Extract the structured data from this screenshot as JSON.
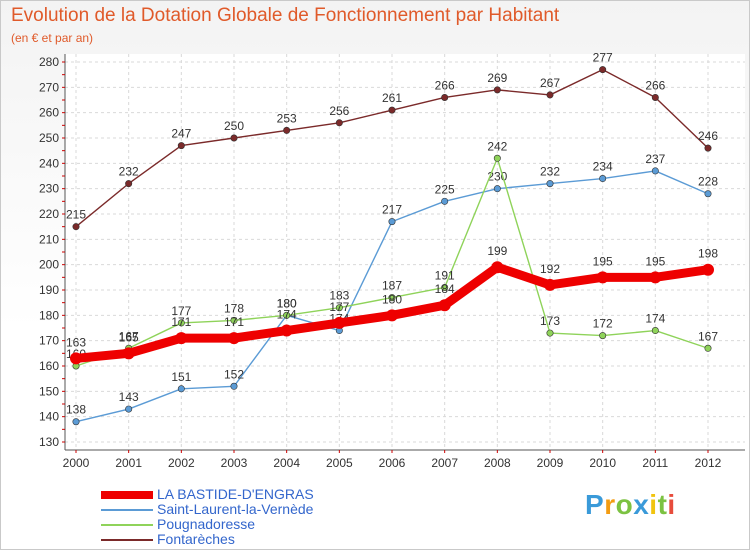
{
  "chart_data": {
    "type": "line",
    "title": "Evolution de la Dotation Globale de Fonctionnement par Habitant",
    "subtitle": "(en € et par an)",
    "xlabel": "",
    "ylabel": "",
    "x": [
      "2000",
      "2001",
      "2002",
      "2003",
      "2004",
      "2005",
      "2006",
      "2007",
      "2008",
      "2009",
      "2010",
      "2011",
      "2012"
    ],
    "ylim": [
      130,
      280
    ],
    "yticks": [
      130,
      140,
      150,
      160,
      170,
      180,
      190,
      200,
      210,
      220,
      230,
      240,
      250,
      260,
      270,
      280
    ],
    "grid": true,
    "legend_position": "bottom-left",
    "series": [
      {
        "name": "Fontarèches",
        "color": "#7b2a2a",
        "values": [
          215,
          232,
          247,
          250,
          253,
          256,
          261,
          266,
          269,
          267,
          277,
          266,
          246
        ]
      },
      {
        "name": "Saint-Laurent-la-Vernède",
        "color": "#5b9bd5",
        "values": [
          138,
          143,
          151,
          152,
          180,
          174,
          217,
          225,
          230,
          232,
          234,
          237,
          228
        ]
      },
      {
        "name": "Pougnadoresse",
        "color": "#8fd35a",
        "values": [
          160,
          167,
          177,
          178,
          180,
          183,
          187,
          191,
          242,
          173,
          172,
          174,
          167
        ]
      },
      {
        "name": "LA BASTIDE-D'ENGRAS",
        "color": "#ee0000",
        "values": [
          163,
          165,
          171,
          171,
          174,
          177,
          180,
          184,
          199,
          192,
          195,
          195,
          198
        ]
      }
    ]
  },
  "legend": [
    {
      "name": "LA BASTIDE-D'ENGRAS",
      "color": "#ee0000",
      "text_color": "#3366cc"
    },
    {
      "name": "Saint-Laurent-la-Vernède",
      "color": "#5b9bd5",
      "text_color": "#3366cc"
    },
    {
      "name": "Pougnadoresse",
      "color": "#8fd35a",
      "text_color": "#3366cc"
    },
    {
      "name": "Fontarèches",
      "color": "#7b2a2a",
      "text_color": "#3366cc"
    }
  ],
  "logo": {
    "text": "Proxiti",
    "letters": [
      "P",
      "r",
      "o",
      "x",
      "i",
      "t",
      "i"
    ],
    "colors": [
      "#3a9ad9",
      "#f39c12",
      "#7cc242",
      "#3a9ad9",
      "#f1c40f",
      "#7cc242",
      "#e74c3c"
    ]
  }
}
